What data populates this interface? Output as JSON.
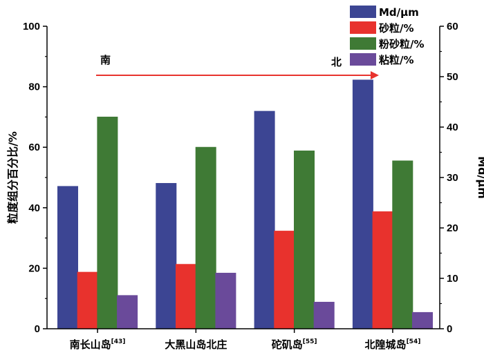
{
  "chart_data": {
    "type": "bar",
    "categories": [
      {
        "name": "南长山岛",
        "ref": "[43]"
      },
      {
        "name": "大黑山岛北庄",
        "ref": ""
      },
      {
        "name": "砣矶岛",
        "ref": "[55]"
      },
      {
        "name": "北隍城岛",
        "ref": "[54]"
      }
    ],
    "series": [
      {
        "name": "Md/μm",
        "axis": "right",
        "color": "#3c4593",
        "values": [
          28.3,
          28.9,
          43.2,
          49.4
        ]
      },
      {
        "name": "砂粒/%",
        "axis": "left",
        "color": "#e8322d",
        "values": [
          18.8,
          21.4,
          32.4,
          38.8
        ]
      },
      {
        "name": "粉砂粒/%",
        "axis": "left",
        "color": "#3f7a35",
        "values": [
          70.1,
          60.1,
          58.9,
          55.6
        ]
      },
      {
        "name": "粘粒/%",
        "axis": "left",
        "color": "#6a4a9a",
        "values": [
          11.1,
          18.5,
          8.9,
          5.5
        ]
      }
    ],
    "ylabel": "粒度组分百分比/%",
    "y2label": "Md/μm",
    "ylim": [
      0,
      100
    ],
    "y2lim": [
      0,
      60
    ],
    "yticks": [
      0,
      20,
      40,
      60,
      80,
      100
    ],
    "y2ticks": [
      0,
      10,
      20,
      30,
      40,
      50,
      60
    ],
    "annotation": {
      "start_label": "南",
      "end_label": "北",
      "color": "#e8322d"
    },
    "legend_position": "top-right"
  }
}
